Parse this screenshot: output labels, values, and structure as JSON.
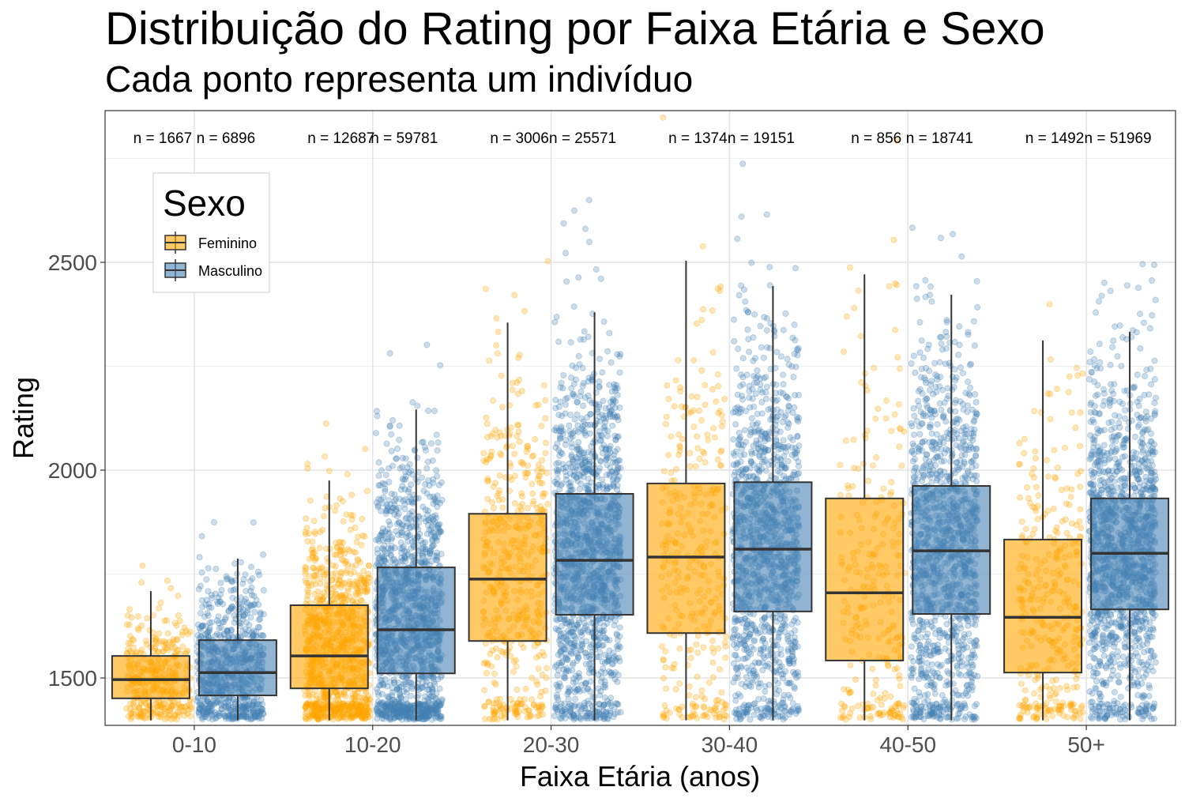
{
  "chart_data": {
    "type": "boxplot_with_jitter",
    "title": "Distribuição do Rating por Faixa Etária e Sexo",
    "subtitle": "Cada ponto representa um indivíduo",
    "xlabel": "Faixa Etária (anos)",
    "ylabel": "Rating",
    "ylim": [
      1386,
      2865
    ],
    "yticks": [
      1500,
      2000,
      2500
    ],
    "grid": true,
    "legend": {
      "title": "Sexo",
      "position": "top-left",
      "entries": [
        "Feminino",
        "Masculino"
      ]
    },
    "colors": {
      "Feminino": "#FFA500",
      "Masculino": "#4682B4"
    },
    "categories": [
      "0-10",
      "10-20",
      "20-30",
      "30-40",
      "40-50",
      "50+"
    ],
    "series": [
      {
        "name": "Feminino",
        "n_labels": [
          "n = 1667",
          "n = 12687",
          "n = 3006",
          "n = 1374",
          "n = 856",
          "n = 1492"
        ],
        "n": [
          1667,
          12687,
          3006,
          1374,
          856,
          1492
        ],
        "whisker_low": [
          1400,
          1400,
          1400,
          1400,
          1400,
          1400
        ],
        "q1": [
          1451,
          1475,
          1589,
          1608,
          1542,
          1513
        ],
        "median": [
          1496,
          1553,
          1738,
          1791,
          1705,
          1646
        ],
        "q3": [
          1553,
          1675,
          1895,
          1968,
          1932,
          1833
        ],
        "whisker_high": [
          1709,
          1975,
          2355,
          2504,
          2471,
          2312
        ]
      },
      {
        "name": "Masculino",
        "n_labels": [
          "n = 6896",
          "n = 59781",
          "n = 25571",
          "n = 19151",
          "n = 18741",
          "n = 51969"
        ],
        "n": [
          6896,
          59781,
          25571,
          19151,
          18741,
          51969
        ],
        "whisker_low": [
          1400,
          1400,
          1400,
          1400,
          1400,
          1400
        ],
        "q1": [
          1458,
          1511,
          1652,
          1660,
          1654,
          1665
        ],
        "median": [
          1513,
          1616,
          1783,
          1810,
          1806,
          1800
        ],
        "q3": [
          1591,
          1766,
          1943,
          1971,
          1962,
          1932
        ],
        "whisker_high": [
          1787,
          2146,
          2380,
          2443,
          2422,
          2333
        ]
      }
    ]
  }
}
